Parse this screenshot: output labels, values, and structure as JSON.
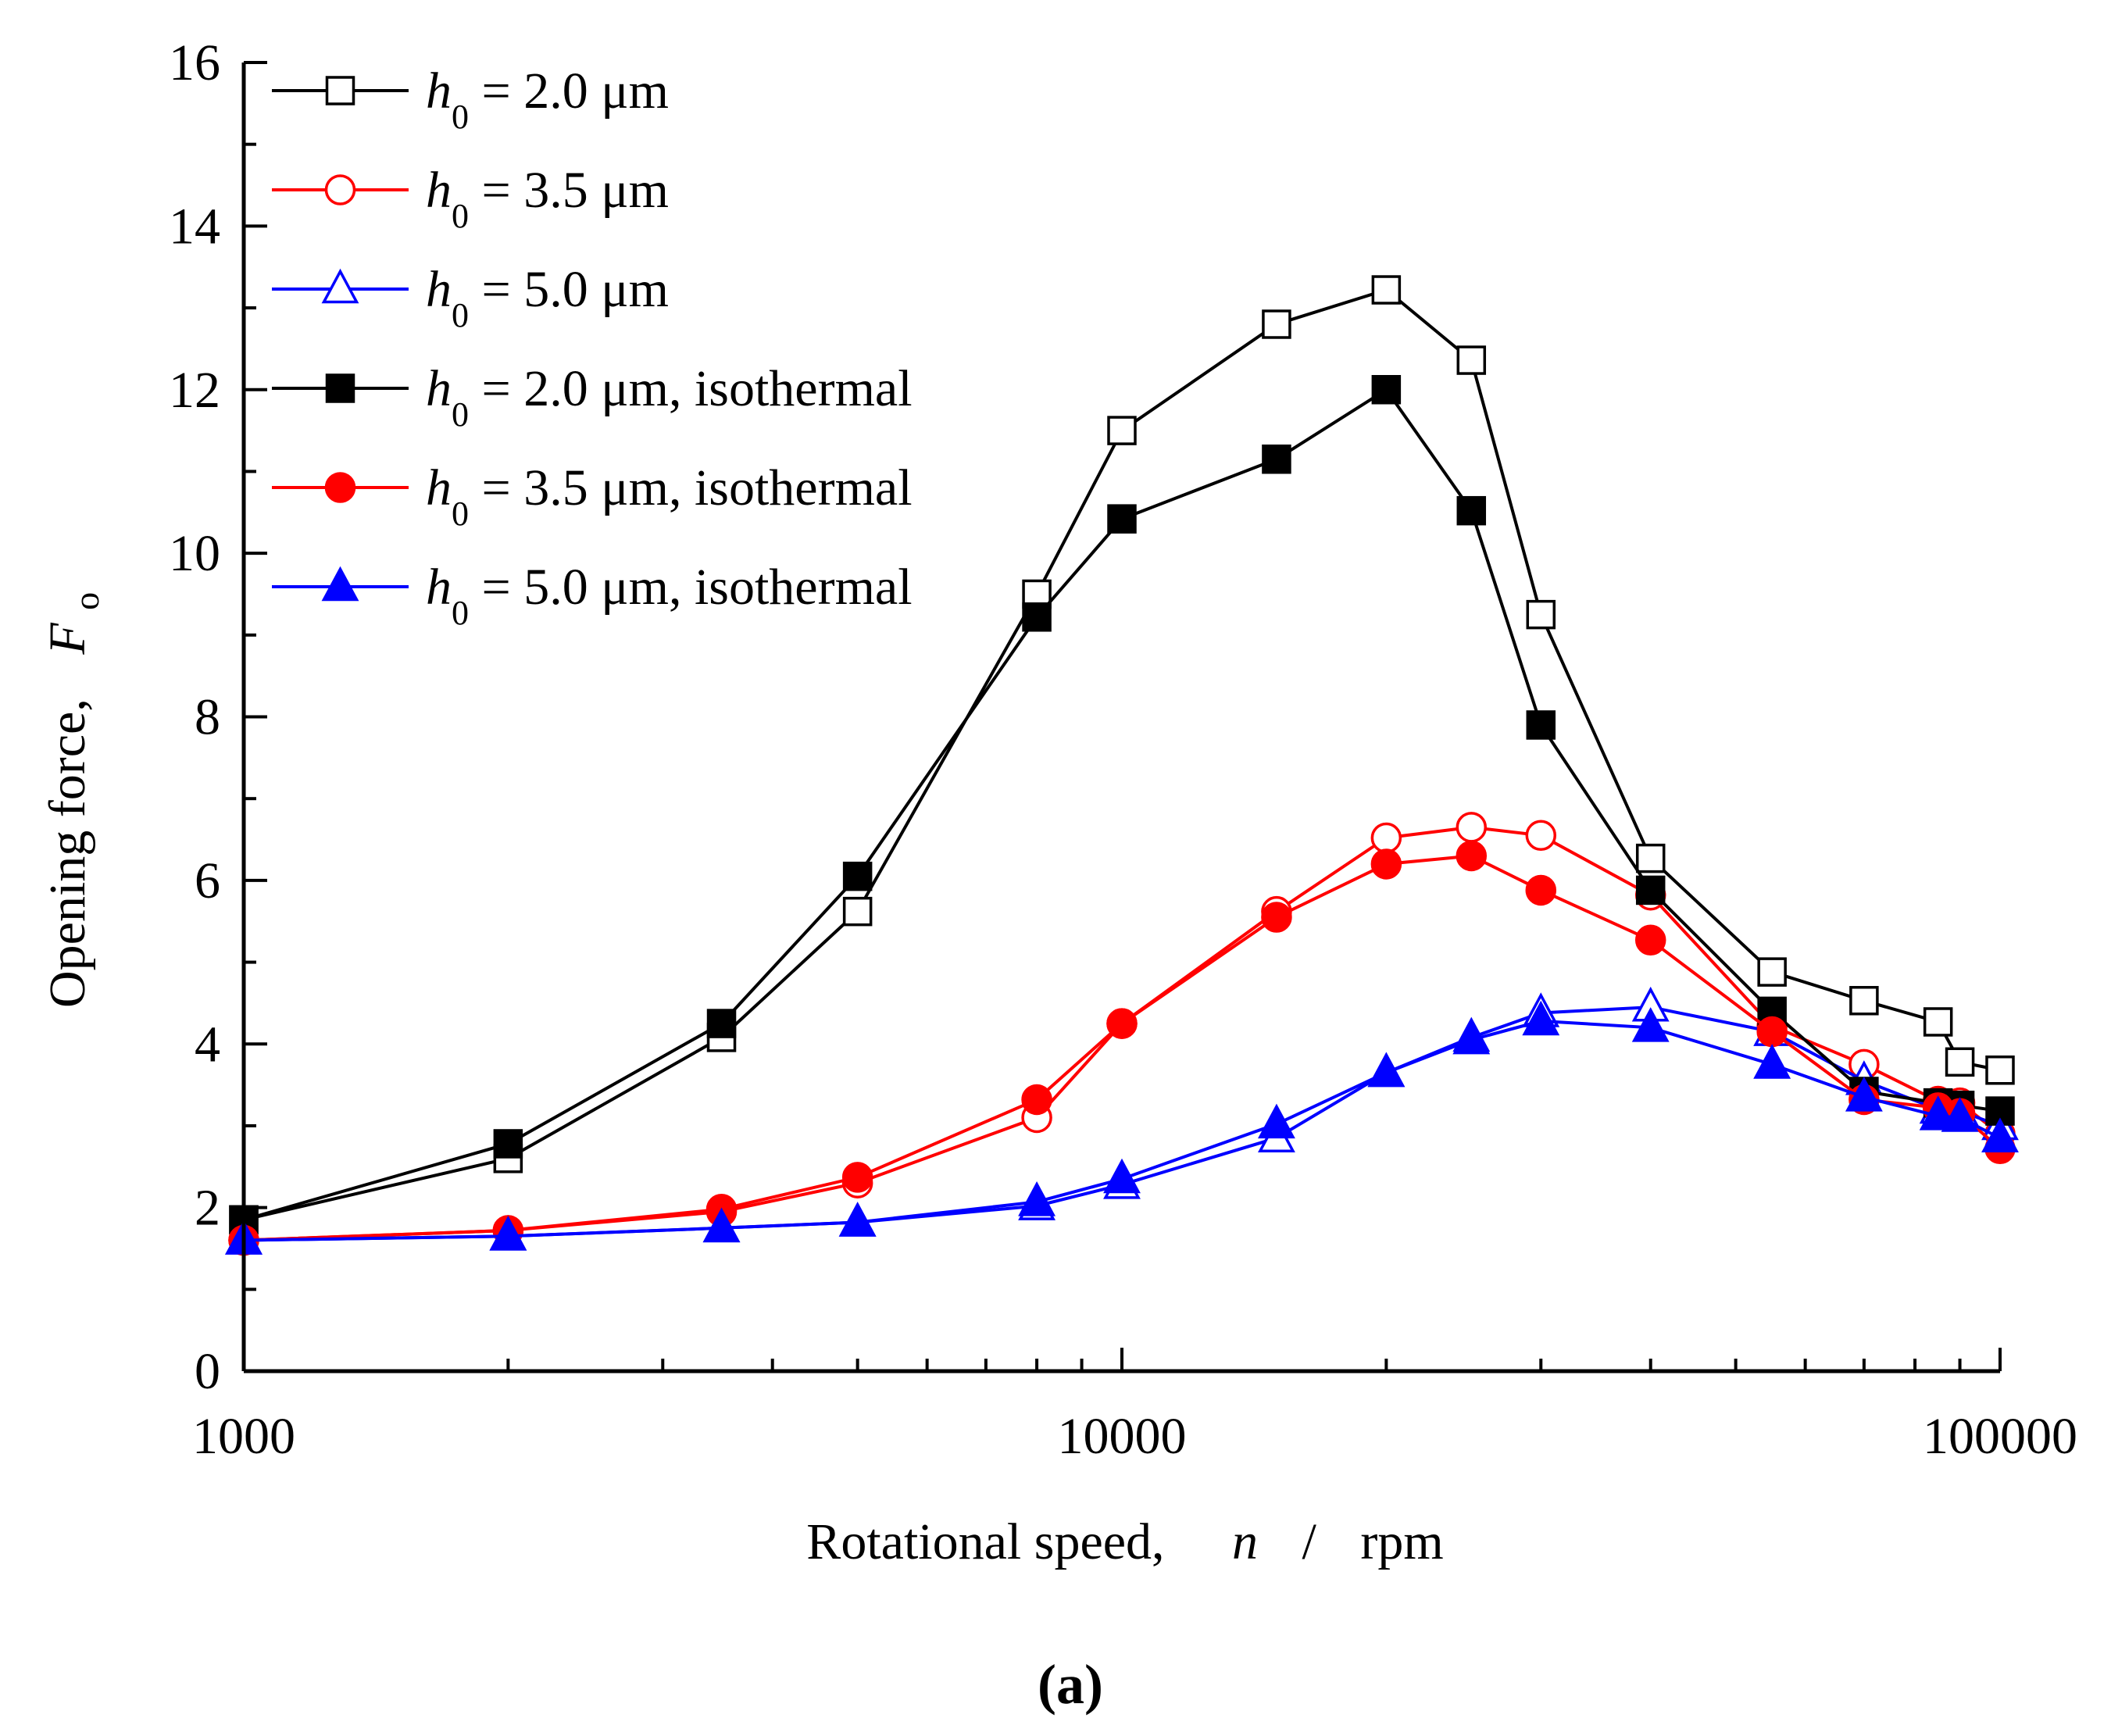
{
  "chart_data": {
    "type": "line",
    "x_scale": "log",
    "xlim": [
      1000,
      100000
    ],
    "ylim": [
      0,
      16
    ],
    "x_ticks": [
      1000,
      10000,
      100000
    ],
    "x_tick_labels": [
      "1000",
      "10000",
      "100000"
    ],
    "y_ticks": [
      0,
      2,
      4,
      6,
      8,
      10,
      12,
      14,
      16
    ],
    "y_tick_labels": [
      "0",
      "2",
      "4",
      "6",
      "8",
      "10",
      "12",
      "14",
      "16"
    ],
    "xlabel": {
      "text": "Rotational speed,",
      "var": "n",
      "sep": "/",
      "unit": "rpm"
    },
    "ylabel": {
      "text": "Opening force,",
      "var": "F",
      "sub": "o"
    },
    "legend_position": "top-left",
    "panel_label": "(a)",
    "series": [
      {
        "symbol": "h",
        "sub": "0",
        "label": " = 2.0 μm",
        "color": "#000000",
        "marker": "square",
        "filled": false,
        "x": [
          1000,
          2000,
          3500,
          5000,
          8000,
          10000,
          15000,
          20000,
          25000,
          30000,
          40000,
          55000,
          70000,
          85000,
          90000,
          100000
        ],
        "y": [
          1.85,
          2.6,
          4.08,
          5.62,
          9.5,
          11.5,
          12.8,
          13.22,
          12.36,
          9.25,
          6.27,
          4.88,
          4.53,
          4.27,
          3.78,
          3.68
        ]
      },
      {
        "symbol": "h",
        "sub": "0",
        "label": " = 3.5 μm",
        "color": "#ff0000",
        "marker": "circle",
        "filled": false,
        "x": [
          1000,
          2000,
          3500,
          5000,
          8000,
          10000,
          15000,
          20000,
          25000,
          30000,
          40000,
          55000,
          70000,
          85000,
          90000,
          100000
        ],
        "y": [
          1.6,
          1.72,
          1.95,
          2.3,
          3.1,
          4.25,
          5.62,
          6.52,
          6.65,
          6.55,
          5.82,
          4.22,
          3.75,
          3.3,
          3.28,
          2.9
        ]
      },
      {
        "symbol": "h",
        "sub": "0",
        "label": " = 5.0 μm",
        "color": "#0000ff",
        "marker": "triangle",
        "filled": false,
        "x": [
          1000,
          2000,
          3500,
          5000,
          8000,
          10000,
          15000,
          20000,
          25000,
          30000,
          40000,
          55000,
          70000,
          85000,
          90000,
          100000
        ],
        "y": [
          1.6,
          1.65,
          1.75,
          1.82,
          2.02,
          2.28,
          2.85,
          3.65,
          4.08,
          4.38,
          4.45,
          4.15,
          3.55,
          3.2,
          3.18,
          3.0
        ]
      },
      {
        "symbol": "h",
        "sub": "0",
        "label": " = 2.0 μm, isothermal",
        "color": "#000000",
        "marker": "square",
        "filled": true,
        "x": [
          1000,
          2000,
          3500,
          5000,
          8000,
          10000,
          15000,
          20000,
          25000,
          30000,
          40000,
          55000,
          70000,
          85000,
          90000,
          100000
        ],
        "y": [
          1.85,
          2.78,
          4.25,
          6.05,
          9.22,
          10.42,
          11.15,
          12.0,
          10.52,
          7.9,
          5.88,
          4.4,
          3.42,
          3.28,
          3.25,
          3.18
        ]
      },
      {
        "symbol": "h",
        "sub": "0",
        "label": " = 3.5 μm, isothermal",
        "color": "#ff0000",
        "marker": "circle",
        "filled": true,
        "x": [
          1000,
          2000,
          3500,
          5000,
          8000,
          10000,
          15000,
          20000,
          25000,
          30000,
          40000,
          55000,
          70000,
          85000,
          90000,
          100000
        ],
        "y": [
          1.6,
          1.72,
          1.98,
          2.37,
          3.32,
          4.25,
          5.55,
          6.2,
          6.3,
          5.88,
          5.27,
          4.15,
          3.32,
          3.22,
          3.15,
          2.72
        ]
      },
      {
        "symbol": "h",
        "sub": "0",
        "label": " = 5.0 μm, isothermal",
        "color": "#0000ff",
        "marker": "triangle",
        "filled": true,
        "x": [
          1000,
          2000,
          3500,
          5000,
          8000,
          10000,
          15000,
          20000,
          25000,
          30000,
          40000,
          55000,
          70000,
          85000,
          90000,
          100000
        ],
        "y": [
          1.6,
          1.65,
          1.75,
          1.82,
          2.07,
          2.35,
          3.02,
          3.65,
          4.05,
          4.28,
          4.2,
          3.75,
          3.35,
          3.12,
          3.1,
          2.85
        ]
      }
    ]
  }
}
